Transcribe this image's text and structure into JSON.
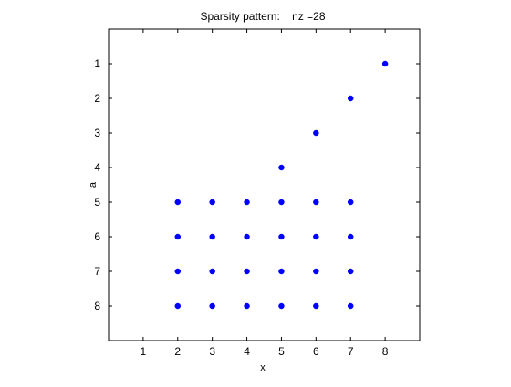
{
  "chart_data": {
    "type": "scatter",
    "title": "Sparsity pattern:    nz =28",
    "xlabel": "x",
    "ylabel": "a",
    "xlim": [
      0,
      9
    ],
    "ylim": [
      0,
      9
    ],
    "y_reversed": true,
    "xticks": [
      1,
      2,
      3,
      4,
      5,
      6,
      7,
      8
    ],
    "yticks": [
      1,
      2,
      3,
      4,
      5,
      6,
      7,
      8
    ],
    "grid": false,
    "marker_color": "#0000ff",
    "points": [
      [
        8,
        1
      ],
      [
        7,
        2
      ],
      [
        6,
        3
      ],
      [
        5,
        4
      ],
      [
        2,
        5
      ],
      [
        3,
        5
      ],
      [
        4,
        5
      ],
      [
        5,
        5
      ],
      [
        6,
        5
      ],
      [
        7,
        5
      ],
      [
        2,
        6
      ],
      [
        3,
        6
      ],
      [
        4,
        6
      ],
      [
        5,
        6
      ],
      [
        6,
        6
      ],
      [
        7,
        6
      ],
      [
        2,
        7
      ],
      [
        3,
        7
      ],
      [
        4,
        7
      ],
      [
        5,
        7
      ],
      [
        6,
        7
      ],
      [
        7,
        7
      ],
      [
        2,
        8
      ],
      [
        3,
        8
      ],
      [
        4,
        8
      ],
      [
        5,
        8
      ],
      [
        6,
        8
      ],
      [
        7,
        8
      ]
    ]
  }
}
